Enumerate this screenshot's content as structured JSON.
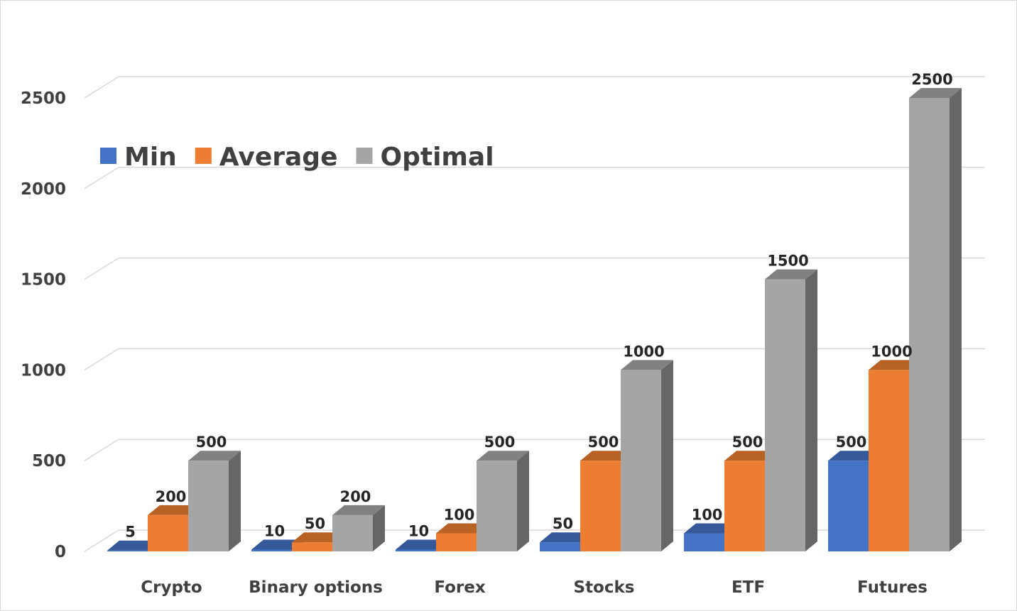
{
  "chart_data": {
    "type": "bar",
    "title": "",
    "xlabel": "",
    "ylabel": "",
    "categories": [
      "Crypto",
      "Binary options",
      "Forex",
      "Stocks",
      "ETF",
      "Futures"
    ],
    "series": [
      {
        "name": "Min",
        "values": [
          5,
          10,
          10,
          50,
          100,
          500
        ],
        "color": "#4472C4"
      },
      {
        "name": "Average",
        "values": [
          200,
          50,
          100,
          500,
          500,
          1000
        ],
        "color": "#ED7D31"
      },
      {
        "name": "Optimal",
        "values": [
          500,
          200,
          500,
          1000,
          1500,
          2500
        ],
        "color": "#A5A5A5"
      }
    ],
    "yticks": [
      "0",
      "500",
      "1000",
      "1500",
      "2000",
      "2500"
    ],
    "ylim": [
      0,
      2500
    ],
    "grid": true,
    "legend": "top-left",
    "style": "3d-clustered-column"
  }
}
